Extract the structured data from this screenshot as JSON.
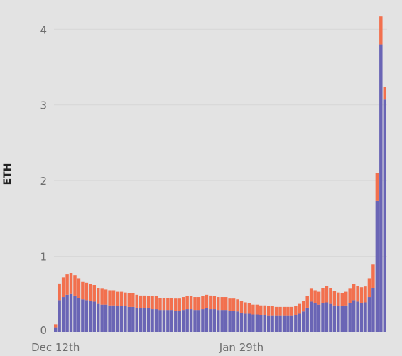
{
  "chart_data": {
    "type": "bar",
    "stacked": true,
    "title": "",
    "xlabel": "",
    "ylabel": "ETH",
    "ylim": [
      0,
      4.2
    ],
    "yticks": [
      0,
      1,
      2,
      3,
      4
    ],
    "xtick_labels": [
      {
        "label": "Dec 12th",
        "index": 0
      },
      {
        "label": "Jan 29th",
        "index": 48
      }
    ],
    "grid": true,
    "legend": "none",
    "colors": {
      "bottom": "#6a65b5",
      "top": "#f2704e",
      "grid": "#d6d6d6",
      "background": "#e3e3e3"
    },
    "series": [
      {
        "values": [
          0.06,
          0.42,
          0.46,
          0.49,
          0.5,
          0.48,
          0.45,
          0.43,
          0.42,
          0.41,
          0.4,
          0.37,
          0.36,
          0.36,
          0.35,
          0.35,
          0.34,
          0.34,
          0.34,
          0.33,
          0.33,
          0.32,
          0.31,
          0.31,
          0.31,
          0.3,
          0.3,
          0.29,
          0.29,
          0.29,
          0.29,
          0.28,
          0.28,
          0.29,
          0.3,
          0.3,
          0.29,
          0.29,
          0.3,
          0.31,
          0.3,
          0.3,
          0.29,
          0.29,
          0.29,
          0.28,
          0.28,
          0.27,
          0.25,
          0.24,
          0.24,
          0.23,
          0.23,
          0.22,
          0.22,
          0.21,
          0.21,
          0.21,
          0.21,
          0.21,
          0.21,
          0.21,
          0.22,
          0.24,
          0.27,
          0.32,
          0.4,
          0.38,
          0.36,
          0.38,
          0.39,
          0.37,
          0.35,
          0.34,
          0.34,
          0.35,
          0.38,
          0.42,
          0.4,
          0.38,
          0.39,
          0.46,
          0.58,
          1.73,
          3.8,
          3.07
        ]
      },
      {
        "values": [
          0.04,
          0.22,
          0.26,
          0.27,
          0.28,
          0.27,
          0.26,
          0.23,
          0.23,
          0.22,
          0.22,
          0.21,
          0.21,
          0.2,
          0.2,
          0.2,
          0.19,
          0.19,
          0.18,
          0.18,
          0.18,
          0.17,
          0.17,
          0.17,
          0.16,
          0.17,
          0.17,
          0.16,
          0.16,
          0.16,
          0.16,
          0.16,
          0.16,
          0.17,
          0.17,
          0.17,
          0.17,
          0.17,
          0.17,
          0.18,
          0.18,
          0.17,
          0.17,
          0.17,
          0.17,
          0.16,
          0.16,
          0.16,
          0.16,
          0.15,
          0.14,
          0.13,
          0.13,
          0.13,
          0.13,
          0.13,
          0.13,
          0.12,
          0.12,
          0.12,
          0.12,
          0.12,
          0.12,
          0.13,
          0.14,
          0.15,
          0.17,
          0.17,
          0.17,
          0.2,
          0.22,
          0.21,
          0.19,
          0.18,
          0.17,
          0.18,
          0.19,
          0.21,
          0.21,
          0.21,
          0.21,
          0.25,
          0.31,
          0.37,
          0.37,
          0.17
        ]
      }
    ]
  }
}
